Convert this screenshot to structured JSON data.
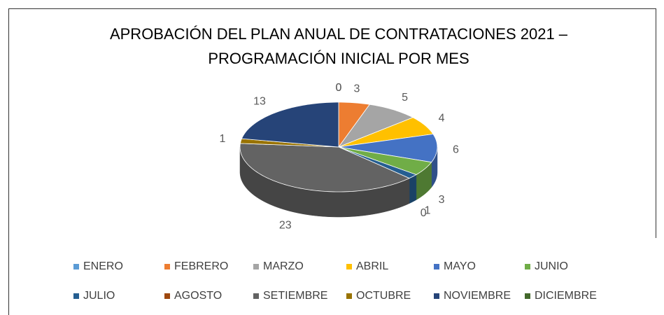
{
  "chart_data": {
    "type": "pie3d",
    "title": [
      "APROBACIÓN DEL PLAN ANUAL DE CONTRATACIONES 2021 –",
      "PROGRAMACIÓN INICIAL POR MES"
    ],
    "categories": [
      "ENERO",
      "FEBRERO",
      "MARZO",
      "ABRIL",
      "MAYO",
      "JUNIO",
      "JULIO",
      "AGOSTO",
      "SETIEMBRE",
      "OCTUBRE",
      "NOVIEMBRE",
      "DICIEMBRE"
    ],
    "values": [
      0,
      3,
      5,
      4,
      6,
      3,
      1,
      0,
      23,
      1,
      13,
      0
    ],
    "colors": [
      "#5B9BD5",
      "#ED7D31",
      "#A5A5A5",
      "#FFC000",
      "#4472C4",
      "#70AD47",
      "#255E91",
      "#9E480E",
      "#636363",
      "#997300",
      "#264478",
      "#43682B"
    ],
    "legend": "bottom"
  }
}
